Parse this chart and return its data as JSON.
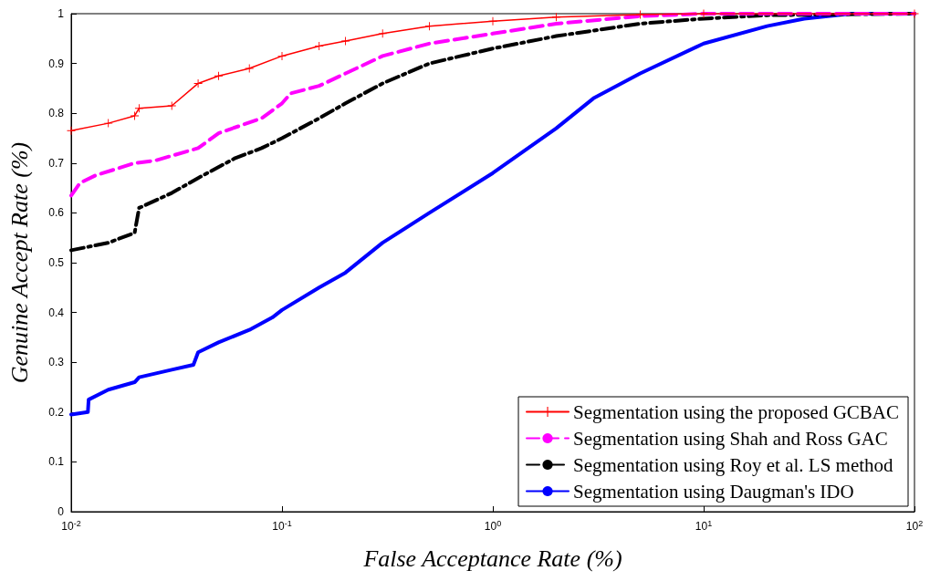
{
  "chart_data": {
    "type": "line",
    "xlabel": "False Acceptance Rate (%)",
    "ylabel": "Genuine Accept Rate (%)",
    "log": "x",
    "xlim": [
      0.01,
      100
    ],
    "xticks": [
      {
        "value": 0.01,
        "label": "10$^{-2}$"
      },
      {
        "value": 0.1,
        "label": "10$^{-1}$"
      },
      {
        "value": 1,
        "label": "10$^{0}$"
      },
      {
        "value": 10,
        "label": "10$^{1}$"
      },
      {
        "value": 100,
        "label": "10$^{2}$"
      }
    ],
    "ylim": [
      0,
      1
    ],
    "yticks": [
      0,
      0.1,
      0.2,
      0.3,
      0.4,
      0.5,
      0.6,
      0.7,
      0.8,
      0.9,
      1
    ],
    "grid": false,
    "legend": "bottom right",
    "series": [
      {
        "name": "Segmentation using the proposed GCBAC",
        "color": "#ff0000",
        "marker": "cross",
        "line_style": "solid",
        "x": [
          0.01,
          0.015,
          0.02,
          0.021,
          0.03,
          0.04,
          0.05,
          0.07,
          0.1,
          0.15,
          0.2,
          0.3,
          0.5,
          1,
          2,
          5,
          10,
          100
        ],
        "values": [
          0.765,
          0.78,
          0.795,
          0.81,
          0.815,
          0.86,
          0.875,
          0.89,
          0.915,
          0.935,
          0.945,
          0.96,
          0.975,
          0.985,
          0.993,
          0.998,
          1,
          1
        ]
      },
      {
        "name": "Segmentation using Shah and Ross GAC",
        "color": "#ff00ff",
        "marker": "none",
        "line_style": "dashed",
        "x": [
          0.01,
          0.011,
          0.013,
          0.02,
          0.025,
          0.04,
          0.05,
          0.08,
          0.1,
          0.11,
          0.15,
          0.2,
          0.3,
          0.5,
          1,
          2,
          5,
          10,
          100
        ],
        "values": [
          0.635,
          0.66,
          0.675,
          0.7,
          0.705,
          0.73,
          0.76,
          0.79,
          0.82,
          0.84,
          0.855,
          0.88,
          0.915,
          0.94,
          0.96,
          0.98,
          0.995,
          1,
          1
        ]
      },
      {
        "name": "Segmentation using Roy et al. LS method",
        "color": "#000000",
        "marker": "none",
        "line_style": "dashdot",
        "x": [
          0.01,
          0.015,
          0.02,
          0.021,
          0.03,
          0.04,
          0.06,
          0.08,
          0.1,
          0.15,
          0.2,
          0.3,
          0.5,
          1,
          2,
          5,
          10,
          20,
          100
        ],
        "values": [
          0.525,
          0.54,
          0.56,
          0.61,
          0.64,
          0.67,
          0.71,
          0.73,
          0.75,
          0.79,
          0.82,
          0.86,
          0.9,
          0.93,
          0.955,
          0.98,
          0.99,
          0.997,
          1
        ]
      },
      {
        "name": "Segmentation using Daugman's IDO",
        "color": "#0000ff",
        "marker": "none",
        "line_style": "solid",
        "x": [
          0.01,
          0.012,
          0.0121,
          0.015,
          0.02,
          0.021,
          0.03,
          0.038,
          0.04,
          0.05,
          0.07,
          0.09,
          0.1,
          0.15,
          0.2,
          0.3,
          0.5,
          1,
          2,
          3,
          5,
          10,
          20,
          30,
          50,
          100
        ],
        "values": [
          0.195,
          0.2,
          0.225,
          0.245,
          0.26,
          0.27,
          0.285,
          0.295,
          0.32,
          0.34,
          0.365,
          0.39,
          0.405,
          0.45,
          0.48,
          0.54,
          0.6,
          0.68,
          0.77,
          0.83,
          0.88,
          0.94,
          0.975,
          0.99,
          1,
          1
        ]
      }
    ]
  }
}
